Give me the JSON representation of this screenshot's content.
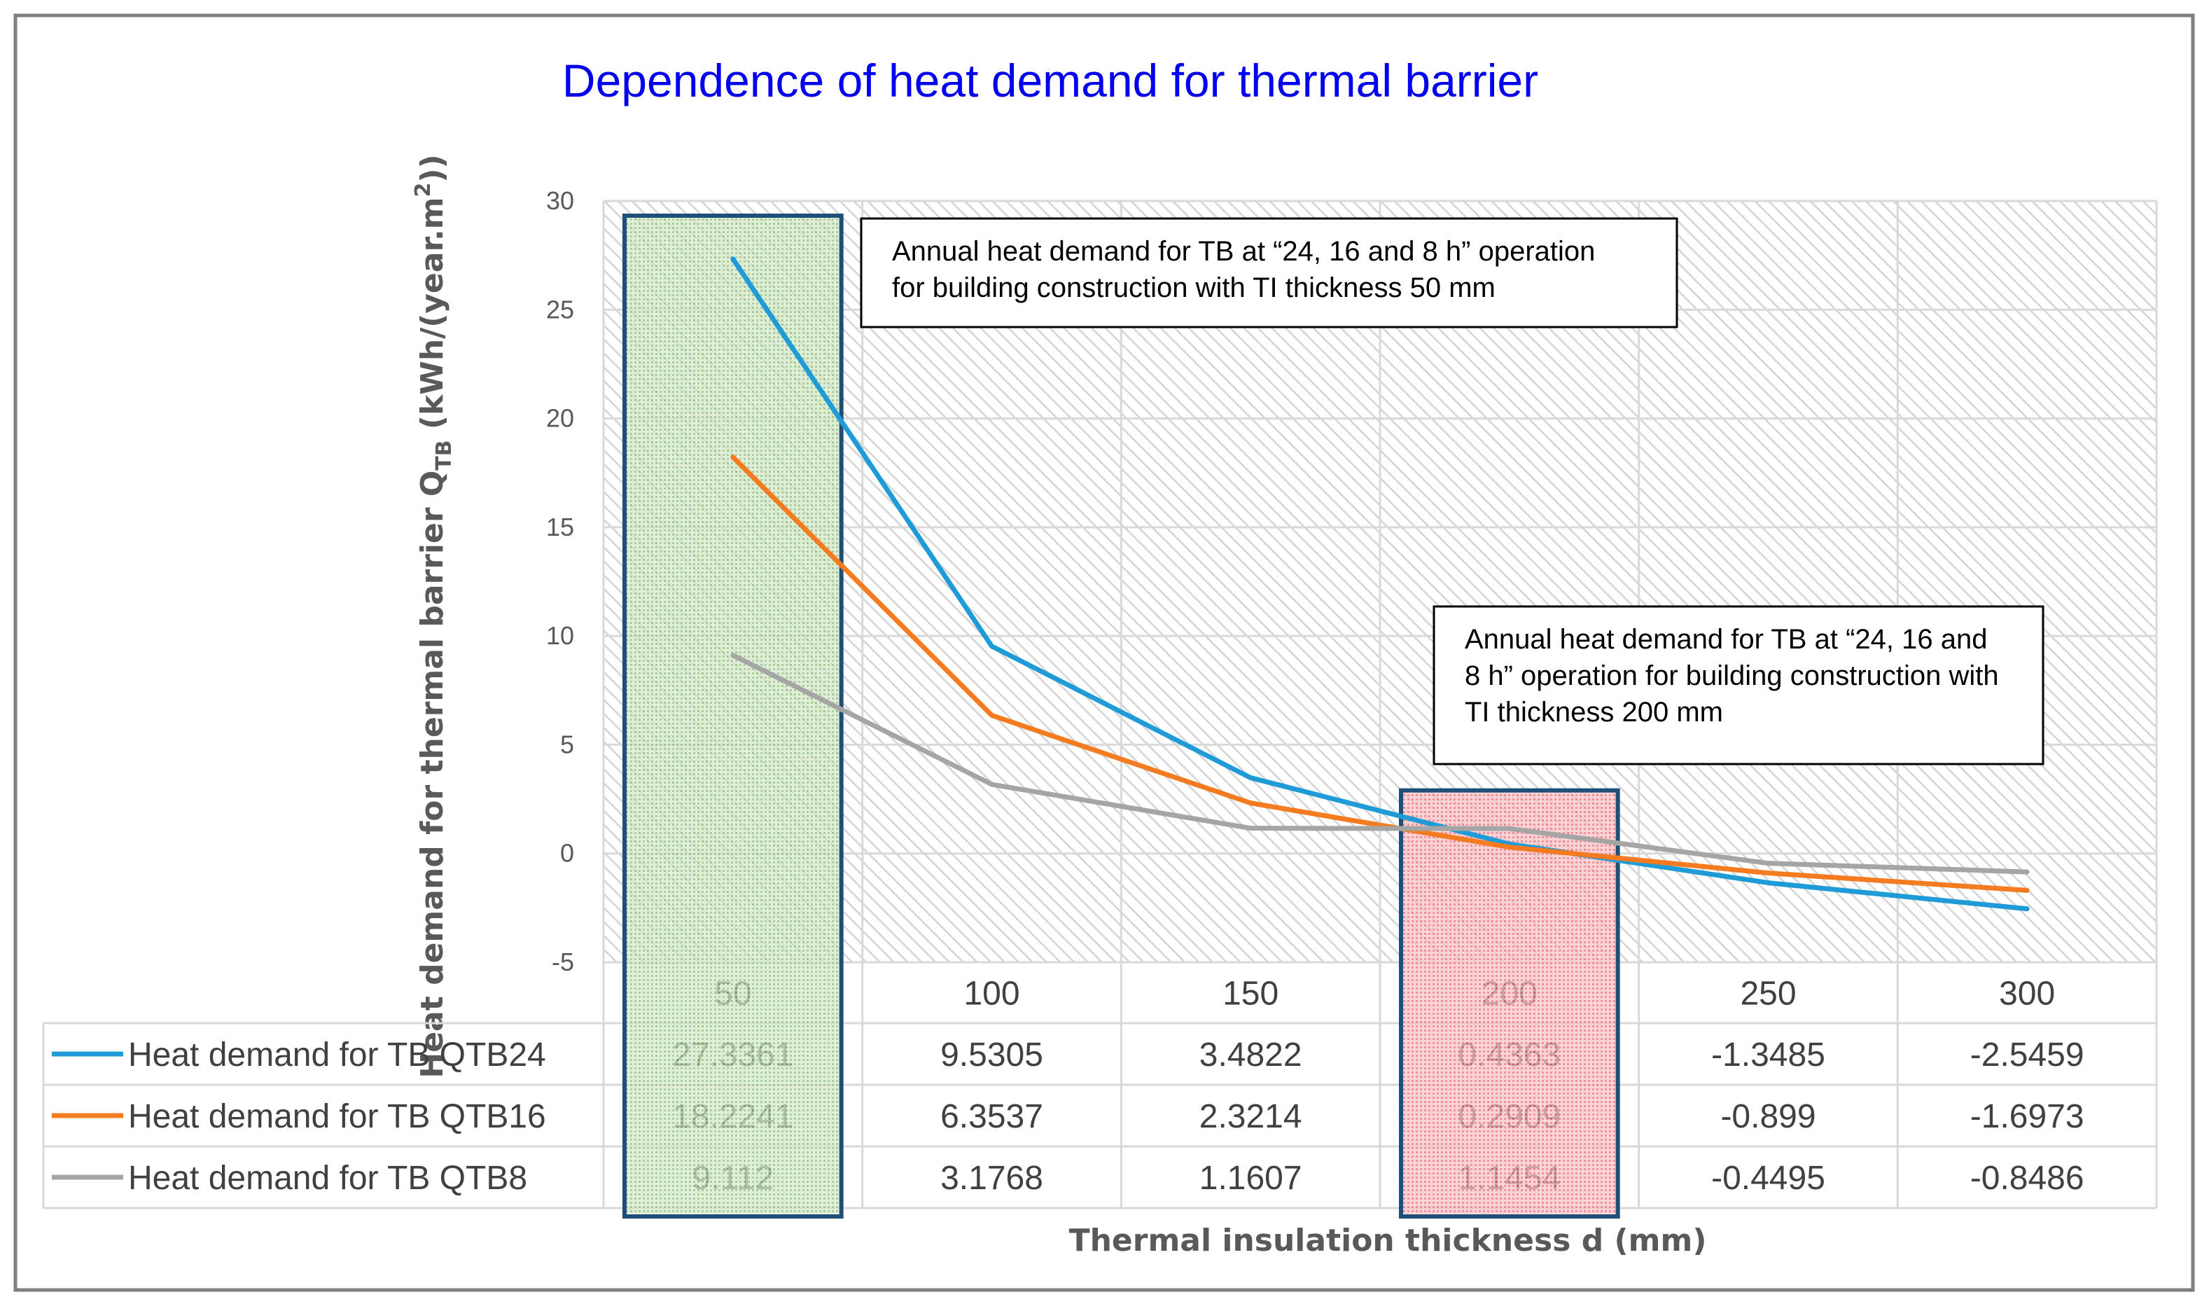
{
  "chart_data": {
    "type": "line",
    "title": "Dependence of heat demand for thermal barrier",
    "xlabel": "Thermal insulation thickness d (mm)",
    "ylabel": {
      "main": "Heat demand for thermal barrier Q",
      "subscript": "TB",
      "unit": " (kWh/(year.m",
      "superscript": "2",
      "close": "))"
    },
    "categories": [
      "50",
      "100",
      "150",
      "200",
      "250",
      "300"
    ],
    "ylim": [
      -5,
      30
    ],
    "yticks": [
      30,
      25,
      20,
      15,
      10,
      5,
      0,
      -5
    ],
    "grid": true,
    "data_table": true,
    "series": [
      {
        "name": "Heat demand for TB QTB24",
        "color": "#1f9bd7",
        "values": [
          27.3361,
          9.5305,
          3.4822,
          0.4363,
          -1.3485,
          -2.5459
        ],
        "labels": [
          "27.3361",
          "9.5305",
          "3.4822",
          "0.4363",
          "-1.3485",
          "-2.5459"
        ]
      },
      {
        "name": "Heat demand for TB  QTB16",
        "color": "#f47b20",
        "values": [
          18.2241,
          6.3537,
          2.3214,
          0.2909,
          -0.899,
          -1.6973
        ],
        "labels": [
          "18.2241",
          "6.3537",
          "2.3214",
          "0.2909",
          "-0.899",
          "-1.6973"
        ]
      },
      {
        "name": "Heat demand for TB  QTB8",
        "color": "#a5a5a5",
        "values": [
          9.112,
          3.1768,
          1.1607,
          1.1454,
          -0.4495,
          -0.8486
        ],
        "labels": [
          "9.112",
          "3.1768",
          "1.1607",
          "1.1454",
          "-0.4495",
          "-0.8486"
        ]
      }
    ],
    "highlights": [
      {
        "category": "50",
        "color": "#4f9a3a"
      },
      {
        "category": "200",
        "color": "#e8404a"
      }
    ],
    "annotations": [
      {
        "target": "50",
        "lines": [
          "Annual heat demand for TB at “24, 16 and 8 h” operation",
          "for building construction with TI thickness 50 mm"
        ]
      },
      {
        "target": "200",
        "lines": [
          "Annual heat demand for TB at “24, 16 and",
          "8 h” operation for building construction with",
          "TI thickness 200 mm"
        ]
      }
    ]
  }
}
